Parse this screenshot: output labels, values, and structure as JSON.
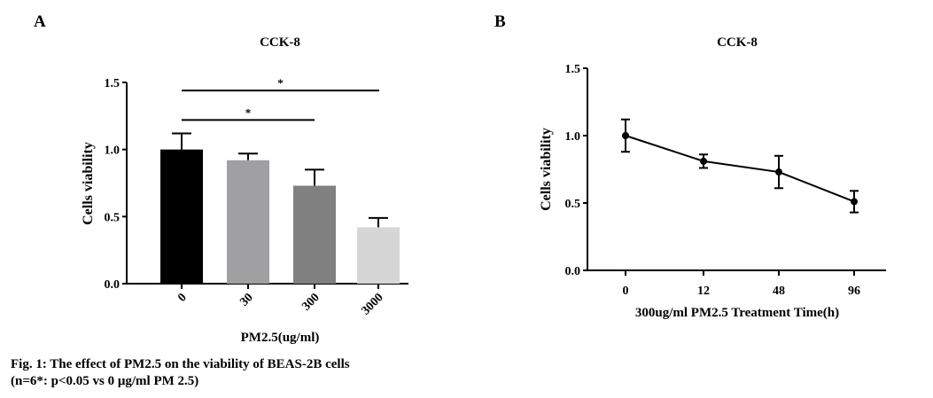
{
  "chart_data": [
    {
      "panel": "A",
      "type": "bar",
      "title": "CCK-8",
      "xlabel": "PM2.5(ug/ml)",
      "ylabel": "Cells viability",
      "categories": [
        "0",
        "30",
        "300",
        "3000"
      ],
      "values": [
        1.0,
        0.92,
        0.73,
        0.42
      ],
      "error_upper": [
        0.12,
        0.05,
        0.12,
        0.07
      ],
      "colors": [
        "#000000",
        "#a0a0a2",
        "#808080",
        "#d6d6d6"
      ],
      "ylim": [
        0,
        1.5
      ],
      "yticks": [
        "0.0",
        "0.5",
        "1.0",
        "1.5"
      ],
      "significance": [
        {
          "from": "0",
          "to": "3000",
          "y": 1.44,
          "label": "*"
        },
        {
          "from": "0",
          "to": "300",
          "y": 1.22,
          "label": "*"
        }
      ]
    },
    {
      "panel": "B",
      "type": "line",
      "title": "CCK-8",
      "xlabel": "300ug/ml PM2.5 Treatment Time(h)",
      "ylabel": "Cells viability",
      "categories": [
        "0",
        "12",
        "48",
        "96"
      ],
      "values": [
        1.0,
        0.81,
        0.73,
        0.51
      ],
      "error": [
        0.12,
        0.05,
        0.12,
        0.08
      ],
      "ylim": [
        0,
        1.5
      ],
      "yticks": [
        "0.0",
        "0.5",
        "1.0",
        "1.5"
      ]
    }
  ],
  "caption": {
    "line1": "Fig. 1: The effect of PM2.5 on the viability of BEAS-2B cells",
    "line2": "(n=6*: p<0.05 vs 0 μg/ml PM 2.5)"
  }
}
